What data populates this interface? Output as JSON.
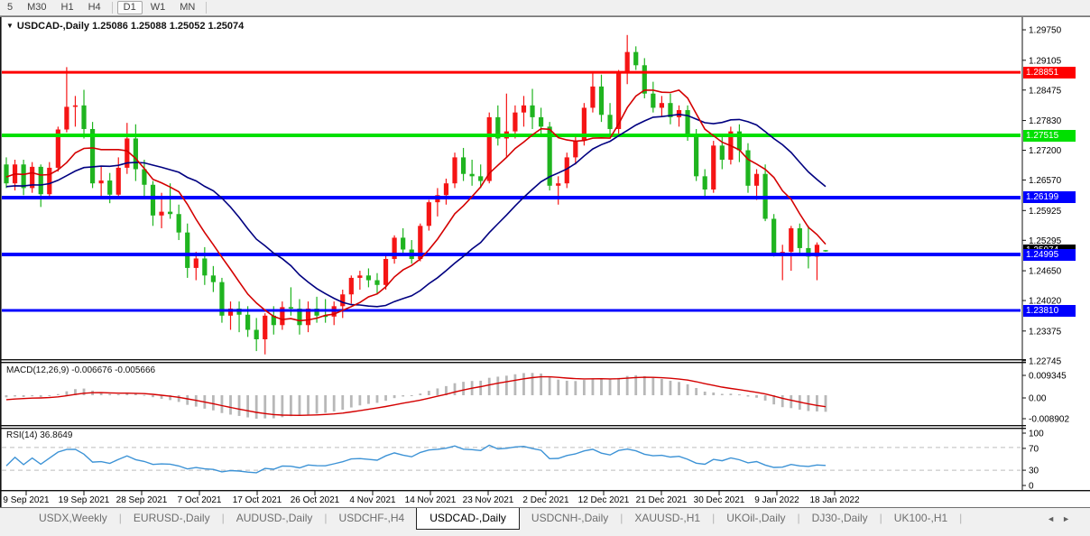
{
  "toolbar": {
    "timeframes": [
      "5",
      "M30",
      "H1",
      "H4",
      "D1",
      "W1",
      "MN"
    ],
    "active_timeframe": "D1"
  },
  "chart": {
    "symbol_text": "USDCAD-,Daily",
    "quote_text": "1.25086 1.25088 1.25052 1.25074"
  },
  "icons": {
    "dropdown": "▼",
    "tab_prev": "◄",
    "tab_next": "►"
  },
  "chart_data": {
    "type": "candlestick",
    "title": "USDCAD-,Daily",
    "current_bar_ohlc": [
      "1.25086",
      "1.25088",
      "1.25052",
      "1.25074"
    ],
    "colors": {
      "up_candle": "#f51515",
      "down_candle": "#1fb41f",
      "ma_fast": "#d40000",
      "ma_slow": "#000080",
      "macd_bar": "#b8b8b8",
      "macd_signal": "#d40000",
      "rsi_line": "#3d93d6",
      "hline_red": "#fe0000",
      "hline_green": "#00e000",
      "hline_blue": "#0000fe",
      "tag_black": "#000000"
    },
    "price_ticks": [
      "1.29750",
      "1.29105",
      "1.28475",
      "1.27830",
      "1.27200",
      "1.26570",
      "1.25925",
      "1.25295",
      "1.24650",
      "1.24020",
      "1.23375",
      "1.22745"
    ],
    "hlines": [
      {
        "price": 1.28851,
        "label": "1.28851",
        "color": "#fe0000",
        "width": 3
      },
      {
        "price": 1.27515,
        "label": "1.27515",
        "color": "#00e000",
        "width": 4
      },
      {
        "price": 1.26199,
        "label": "1.26199",
        "color": "#0000fe",
        "width": 4
      },
      {
        "price": 1.24995,
        "label": "1.24995",
        "color": "#0000fe",
        "width": 4
      },
      {
        "price": 1.2381,
        "label": "1.23810",
        "color": "#0000fe",
        "width": 3
      }
    ],
    "current_price_label": "1.25074",
    "current_price": 1.25074,
    "x_labels": [
      "9 Sep 2021",
      "19 Sep 2021",
      "28 Sep 2021",
      "7 Oct 2021",
      "17 Oct 2021",
      "26 Oct 2021",
      "4 Nov 2021",
      "14 Nov 2021",
      "23 Nov 2021",
      "2 Dec 2021",
      "12 Dec 2021",
      "21 Dec 2021",
      "30 Dec 2021",
      "9 Jan 2022",
      "18 Jan 2022"
    ],
    "ma_periods": {
      "fast": 8,
      "slow": 20
    },
    "macd": {
      "label": "MACD(12,26,9)",
      "values": "-0.006676 -0.005666",
      "params": [
        12,
        26,
        9
      ],
      "ticks": [
        "0.009345",
        "0.00",
        "-0.008902"
      ]
    },
    "rsi": {
      "label": "RSI(14)",
      "value": "36.8649",
      "period": 14,
      "ticks": [
        "100",
        "70",
        "30",
        "0"
      ],
      "levels": [
        70,
        30
      ]
    },
    "warmup_closes": [
      1.276,
      1.2752,
      1.2744,
      1.2735,
      1.2726,
      1.2716,
      1.2706,
      1.2696,
      1.2686,
      1.2676,
      1.2666,
      1.2656,
      1.2647,
      1.2639,
      1.2632,
      1.2626,
      1.2621,
      1.2618,
      1.2617,
      1.2618,
      1.2621,
      1.2626,
      1.2632,
      1.264,
      1.2648,
      1.2657,
      1.2666,
      1.2675,
      1.2683,
      1.269
    ],
    "candles": [
      [
        1.269,
        1.2705,
        1.264,
        1.265
      ],
      [
        1.265,
        1.27,
        1.2635,
        1.269
      ],
      [
        1.269,
        1.27,
        1.2625,
        1.264
      ],
      [
        1.264,
        1.2695,
        1.263,
        1.2685
      ],
      [
        1.2685,
        1.269,
        1.26,
        1.2627
      ],
      [
        1.2627,
        1.2695,
        1.262,
        1.2683
      ],
      [
        1.2683,
        1.277,
        1.2675,
        1.2764
      ],
      [
        1.2764,
        1.2896,
        1.2758,
        1.2812
      ],
      [
        1.2812,
        1.2835,
        1.277,
        1.2815
      ],
      [
        1.2815,
        1.2848,
        1.2745,
        1.2765
      ],
      [
        1.2765,
        1.278,
        1.264,
        1.265
      ],
      [
        1.265,
        1.2685,
        1.262,
        1.2656
      ],
      [
        1.2656,
        1.2672,
        1.2608,
        1.2626
      ],
      [
        1.2626,
        1.2705,
        1.2618,
        1.2683
      ],
      [
        1.2683,
        1.2778,
        1.267,
        1.2745
      ],
      [
        1.2745,
        1.2775,
        1.2655,
        1.268
      ],
      [
        1.268,
        1.27,
        1.262,
        1.2647
      ],
      [
        1.2647,
        1.2655,
        1.256,
        1.2582
      ],
      [
        1.2582,
        1.263,
        1.2555,
        1.259
      ],
      [
        1.259,
        1.265,
        1.2575,
        1.2585
      ],
      [
        1.2585,
        1.2605,
        1.253,
        1.2546
      ],
      [
        1.2546,
        1.2565,
        1.245,
        1.2471
      ],
      [
        1.2471,
        1.2505,
        1.2445,
        1.2491
      ],
      [
        1.2491,
        1.2515,
        1.2435,
        1.2455
      ],
      [
        1.2455,
        1.2475,
        1.242,
        1.2441
      ],
      [
        1.2441,
        1.245,
        1.2355,
        1.237
      ],
      [
        1.237,
        1.24,
        1.234,
        1.2385
      ],
      [
        1.2385,
        1.24,
        1.2335,
        1.2372
      ],
      [
        1.2372,
        1.239,
        1.2325,
        1.234
      ],
      [
        1.234,
        1.2365,
        1.2295,
        1.232
      ],
      [
        1.232,
        1.2375,
        1.2288,
        1.237
      ],
      [
        1.237,
        1.239,
        1.233,
        1.235
      ],
      [
        1.235,
        1.24,
        1.234,
        1.2388
      ],
      [
        1.2388,
        1.243,
        1.237,
        1.2385
      ],
      [
        1.2385,
        1.2405,
        1.233,
        1.235
      ],
      [
        1.235,
        1.24,
        1.2335,
        1.2385
      ],
      [
        1.2385,
        1.241,
        1.2355,
        1.237
      ],
      [
        1.237,
        1.2405,
        1.2355,
        1.2368
      ],
      [
        1.2368,
        1.24,
        1.235,
        1.239
      ],
      [
        1.239,
        1.2425,
        1.2365,
        1.2415
      ],
      [
        1.2415,
        1.2455,
        1.2395,
        1.245
      ],
      [
        1.245,
        1.2465,
        1.2425,
        1.2455
      ],
      [
        1.2455,
        1.247,
        1.243,
        1.2445
      ],
      [
        1.2445,
        1.246,
        1.2415,
        1.2435
      ],
      [
        1.2435,
        1.25,
        1.2425,
        1.249
      ],
      [
        1.249,
        1.254,
        1.248,
        1.2535
      ],
      [
        1.2535,
        1.2555,
        1.25,
        1.251
      ],
      [
        1.251,
        1.253,
        1.248,
        1.249
      ],
      [
        1.249,
        1.2565,
        1.2485,
        1.256
      ],
      [
        1.256,
        1.2615,
        1.255,
        1.261
      ],
      [
        1.261,
        1.264,
        1.258,
        1.2625
      ],
      [
        1.2625,
        1.266,
        1.2605,
        1.265
      ],
      [
        1.265,
        1.2715,
        1.264,
        1.2705
      ],
      [
        1.2705,
        1.2725,
        1.2655,
        1.267
      ],
      [
        1.267,
        1.27,
        1.2645,
        1.2665
      ],
      [
        1.2665,
        1.269,
        1.264,
        1.2655
      ],
      [
        1.2655,
        1.28,
        1.265,
        1.279
      ],
      [
        1.279,
        1.2815,
        1.273,
        1.2745
      ],
      [
        1.2745,
        1.284,
        1.2705,
        1.276
      ],
      [
        1.276,
        1.2815,
        1.2745,
        1.28
      ],
      [
        1.28,
        1.2835,
        1.277,
        1.2815
      ],
      [
        1.2815,
        1.285,
        1.2765,
        1.279
      ],
      [
        1.279,
        1.281,
        1.2755,
        1.277
      ],
      [
        1.277,
        1.278,
        1.2635,
        1.2645
      ],
      [
        1.2645,
        1.2665,
        1.2605,
        1.265
      ],
      [
        1.265,
        1.2715,
        1.264,
        1.2705
      ],
      [
        1.2705,
        1.2755,
        1.269,
        1.274
      ],
      [
        1.274,
        1.282,
        1.273,
        1.281
      ],
      [
        1.281,
        1.2885,
        1.28,
        1.2855
      ],
      [
        1.2855,
        1.288,
        1.278,
        1.2795
      ],
      [
        1.2795,
        1.282,
        1.275,
        1.2765
      ],
      [
        1.2765,
        1.289,
        1.2755,
        1.2885
      ],
      [
        1.2885,
        1.2964,
        1.286,
        1.2928
      ],
      [
        1.2928,
        1.294,
        1.289,
        1.29
      ],
      [
        1.29,
        1.2915,
        1.283,
        1.284
      ],
      [
        1.284,
        1.2865,
        1.28,
        1.281
      ],
      [
        1.281,
        1.2835,
        1.279,
        1.282
      ],
      [
        1.282,
        1.284,
        1.2775,
        1.279
      ],
      [
        1.279,
        1.2815,
        1.277,
        1.2805
      ],
      [
        1.2805,
        1.2815,
        1.274,
        1.275
      ],
      [
        1.275,
        1.2765,
        1.2655,
        1.2665
      ],
      [
        1.2665,
        1.268,
        1.262,
        1.2637
      ],
      [
        1.2637,
        1.274,
        1.263,
        1.273
      ],
      [
        1.273,
        1.2755,
        1.268,
        1.27
      ],
      [
        1.27,
        1.277,
        1.269,
        1.276
      ],
      [
        1.276,
        1.2775,
        1.2695,
        1.272
      ],
      [
        1.272,
        1.2735,
        1.263,
        1.2645
      ],
      [
        1.2645,
        1.268,
        1.2615,
        1.267
      ],
      [
        1.267,
        1.269,
        1.257,
        1.2575
      ],
      [
        1.2575,
        1.2585,
        1.2495,
        1.25
      ],
      [
        1.25,
        1.252,
        1.2445,
        1.2505
      ],
      [
        1.2505,
        1.256,
        1.2465,
        1.2555
      ],
      [
        1.2555,
        1.2565,
        1.25,
        1.2513
      ],
      [
        1.2513,
        1.256,
        1.247,
        1.2495
      ],
      [
        1.2495,
        1.2525,
        1.2445,
        1.252
      ],
      [
        1.25086,
        1.25088,
        1.25052,
        1.25074
      ]
    ]
  },
  "tabs": {
    "items": [
      "USDX,Weekly",
      "EURUSD-,Daily",
      "AUDUSD-,Daily",
      "USDCHF-,H4",
      "USDCAD-,Daily",
      "USDCNH-,Daily",
      "XAUUSD-,H1",
      "UKOil-,Daily",
      "DJ30-,Daily",
      "UK100-,H1"
    ],
    "active_index": 4
  }
}
